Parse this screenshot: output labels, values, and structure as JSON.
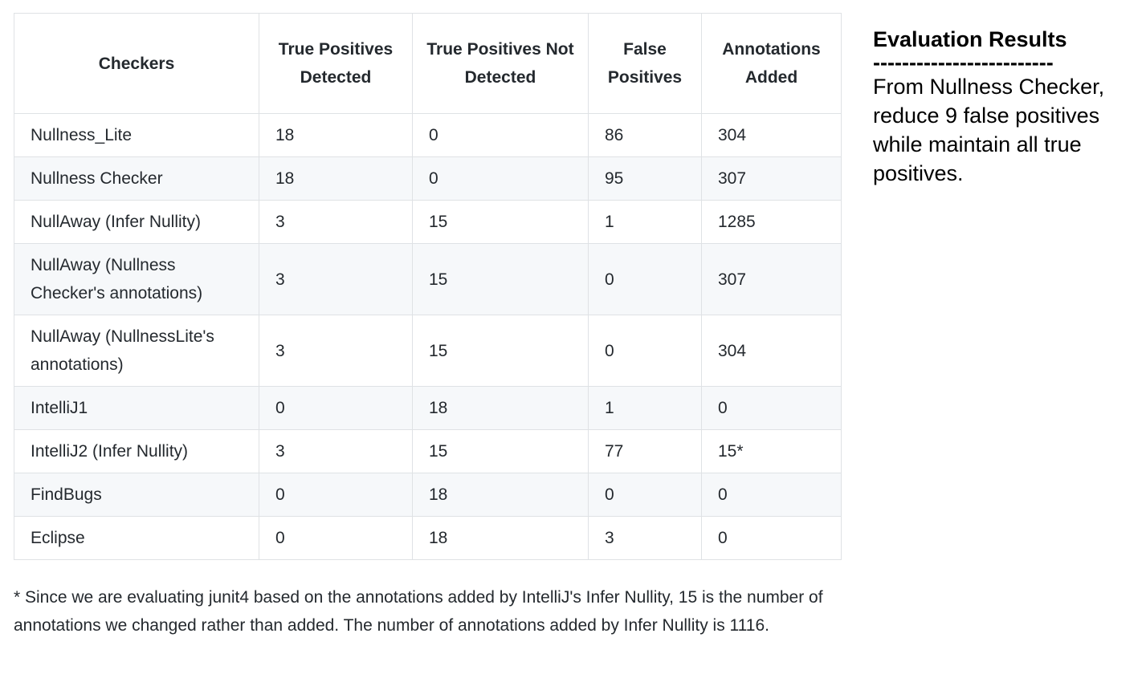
{
  "table": {
    "headers": [
      "Checkers",
      "True Positives Detected",
      "True Positives Not Detected",
      "False Positives",
      "Annotations Added"
    ],
    "rows": [
      {
        "checker": "Nullness_Lite",
        "tp_detected": "18",
        "tp_not_detected": "0",
        "false_positives": "86",
        "annotations_added": "304"
      },
      {
        "checker": "Nullness Checker",
        "tp_detected": "18",
        "tp_not_detected": "0",
        "false_positives": "95",
        "annotations_added": "307"
      },
      {
        "checker": "NullAway (Infer Nullity)",
        "tp_detected": "3",
        "tp_not_detected": "15",
        "false_positives": "1",
        "annotations_added": "1285"
      },
      {
        "checker": "NullAway (Nullness Checker's annotations)",
        "tp_detected": "3",
        "tp_not_detected": "15",
        "false_positives": "0",
        "annotations_added": "307"
      },
      {
        "checker": "NullAway (NullnessLite's annotations)",
        "tp_detected": "3",
        "tp_not_detected": "15",
        "false_positives": "0",
        "annotations_added": "304"
      },
      {
        "checker": "IntelliJ1",
        "tp_detected": "0",
        "tp_not_detected": "18",
        "false_positives": "1",
        "annotations_added": "0"
      },
      {
        "checker": "IntelliJ2 (Infer Nullity)",
        "tp_detected": "3",
        "tp_not_detected": "15",
        "false_positives": "77",
        "annotations_added": "15*"
      },
      {
        "checker": "FindBugs",
        "tp_detected": "0",
        "tp_not_detected": "18",
        "false_positives": "0",
        "annotations_added": "0"
      },
      {
        "checker": "Eclipse",
        "tp_detected": "0",
        "tp_not_detected": "18",
        "false_positives": "3",
        "annotations_added": "0"
      }
    ]
  },
  "footnote": "* Since we are evaluating junit4 based on the annotations added by IntelliJ's Infer Nullity, 15 is the number of annotations we changed rather than added. The number of annotations added by Infer Nullity is 1116.",
  "side": {
    "title": "Evaluation Results",
    "rule": "-------------------------",
    "text": "From Nullness Checker, reduce 9 false positives while maintain all true positives."
  }
}
